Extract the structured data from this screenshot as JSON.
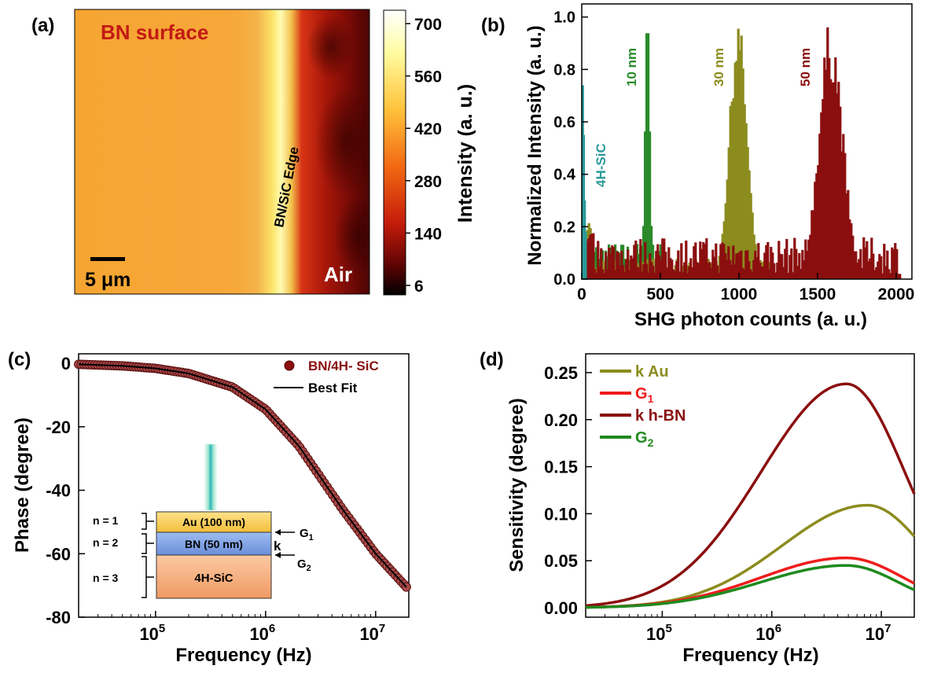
{
  "panels": {
    "a": {
      "label": "(a)",
      "surface_label": "BN surface",
      "edge_label": "BN/SiC Edge",
      "air_label": "Air",
      "scalebar_label": "5 μm",
      "colorbar_title": "Intensity (a. u.)",
      "colorbar_ticks": [
        "700",
        "560",
        "420",
        "280",
        "140",
        "6"
      ]
    },
    "b": {
      "label": "(b)",
      "xlabel": "SHG photon counts (a. u.)",
      "ylabel": "Normalized Intensity (a. u.)",
      "xticks": [
        "0",
        "500",
        "1000",
        "1500",
        "2000"
      ],
      "yticks": [
        "0.0",
        "0.2",
        "0.4",
        "0.6",
        "0.8",
        "1.0"
      ],
      "annotations": [
        "4H-SiC",
        "10 nm",
        "30 nm",
        "50 nm"
      ]
    },
    "c": {
      "label": "(c)",
      "xlabel": "Frequency (Hz)",
      "ylabel": "Phase (degree)",
      "yticks": [
        "0",
        "-20",
        "-40",
        "-60",
        "-80"
      ],
      "xticks": [
        "10",
        "10",
        "10"
      ],
      "xtick_exponents": [
        "5",
        "6",
        "7"
      ],
      "legend": [
        "BN/4H- SiC",
        "Best Fit"
      ],
      "inset": {
        "layers": [
          "Au (100 nm)",
          "BN (50 nm)",
          "4H-SiC"
        ],
        "n_labels": [
          "n = 1",
          "n = 2",
          "n = 3"
        ],
        "g1": "G",
        "g1_sub": "1",
        "g2": "G",
        "g2_sub": "2",
        "k": "k"
      }
    },
    "d": {
      "label": "(d)",
      "xlabel": "Frequency (Hz)",
      "ylabel": "Sensitivity (degree)",
      "yticks": [
        "0.00",
        "0.05",
        "0.10",
        "0.15",
        "0.20",
        "0.25"
      ],
      "xticks": [
        "10",
        "10",
        "10"
      ],
      "xtick_exponents": [
        "5",
        "6",
        "7"
      ],
      "legend": [
        {
          "text": "k Au",
          "sub": ""
        },
        {
          "text": "G",
          "sub": "1"
        },
        {
          "text": "k h-BN",
          "sub": ""
        },
        {
          "text": "G",
          "sub": "2"
        }
      ]
    }
  },
  "colors": {
    "teal": "#2a9a9a",
    "green": "#2a8a2a",
    "olive": "#8c8c1e",
    "darkred": "#8b0f0f",
    "red": "#ee1c1c",
    "dkgreen": "#1f8a1f"
  },
  "chart_data": [
    {
      "type": "heatmap",
      "panel": "a",
      "colorbar_range": [
        6,
        700
      ],
      "colorbar_ticks": [
        700,
        560,
        420,
        280,
        140,
        6
      ]
    },
    {
      "type": "bar",
      "panel": "b",
      "xlim": [
        0,
        2100
      ],
      "ylim": [
        0,
        1.05
      ],
      "series": [
        {
          "name": "4H-SiC",
          "center": 20,
          "width": 10,
          "peak": 0.74
        },
        {
          "name": "10 nm",
          "center": 410,
          "width": 20,
          "peak": 1.0
        },
        {
          "name": "30 nm",
          "center": 980,
          "width": 65,
          "peak": 1.0
        },
        {
          "name": "50 nm",
          "center": 1560,
          "width": 75,
          "peak": 1.0
        }
      ]
    },
    {
      "type": "line",
      "panel": "c",
      "xscale": "log",
      "xlim": [
        20000,
        20000000
      ],
      "ylim": [
        -80,
        3
      ],
      "series": [
        {
          "name": "BN/4H- SiC",
          "style": "markers",
          "x": [
            20000,
            50000,
            100000,
            200000,
            500000,
            1000000,
            2000000,
            5000000,
            10000000,
            19000000
          ],
          "y": [
            -0.3,
            -0.8,
            -1.6,
            -3.2,
            -7.5,
            -14.5,
            -26,
            -46,
            -60,
            -70.5
          ]
        },
        {
          "name": "Best Fit",
          "style": "line",
          "x": [
            20000,
            50000,
            100000,
            200000,
            500000,
            1000000,
            2000000,
            5000000,
            10000000,
            19000000
          ],
          "y": [
            -0.3,
            -0.8,
            -1.6,
            -3.2,
            -7.5,
            -14.5,
            -26,
            -46,
            -60,
            -70.5
          ]
        }
      ]
    },
    {
      "type": "line",
      "panel": "d",
      "xscale": "log",
      "xlim": [
        20000,
        20000000
      ],
      "ylim": [
        -0.01,
        0.27
      ],
      "series": [
        {
          "name": "k Au",
          "peak_x": 7500000,
          "peak_y": 0.109,
          "end_y": 0.076,
          "color": "#8c8c1e"
        },
        {
          "name": "G1",
          "peak_x": 4800000,
          "peak_y": 0.053,
          "end_y": 0.026,
          "color": "#ee1c1c"
        },
        {
          "name": "k h-BN",
          "peak_x": 4800000,
          "peak_y": 0.238,
          "end_y": 0.121,
          "color": "#8b0f0f"
        },
        {
          "name": "G2",
          "peak_x": 4800000,
          "peak_y": 0.045,
          "end_y": 0.019,
          "color": "#1f8a1f"
        }
      ]
    }
  ]
}
